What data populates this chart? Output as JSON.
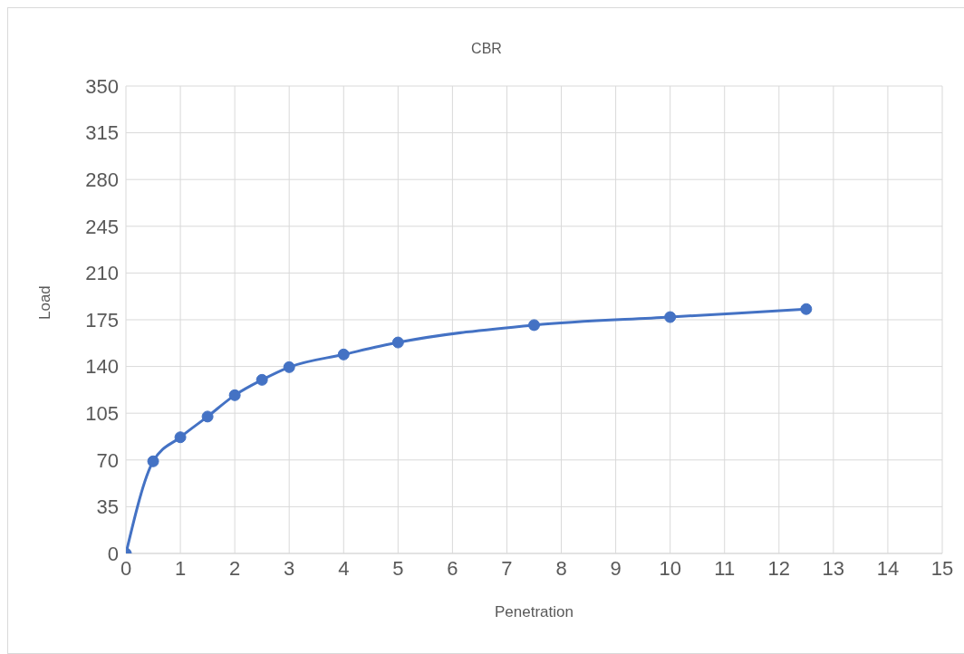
{
  "chart_data": {
    "type": "line",
    "title": "CBR",
    "xlabel": "Penetration",
    "ylabel": "Load",
    "x": [
      0,
      0.5,
      1,
      1.5,
      2,
      2.5,
      3,
      4,
      5,
      7.5,
      10,
      12.5
    ],
    "series": [
      {
        "color": "#4472c4",
        "values": [
          0,
          69,
          87,
          102.5,
          118.5,
          130,
          139.5,
          149,
          158,
          171,
          177,
          183
        ]
      }
    ],
    "xlim": [
      0,
      15
    ],
    "xticks": [
      0,
      1,
      2,
      3,
      4,
      5,
      6,
      7,
      8,
      9,
      10,
      11,
      12,
      13,
      14,
      15
    ],
    "ylim": [
      0,
      350
    ],
    "yticks": [
      0,
      35,
      70,
      105,
      140,
      175,
      210,
      245,
      280,
      315,
      350
    ],
    "grid": true,
    "marker": "circle",
    "line_style": "solid"
  }
}
